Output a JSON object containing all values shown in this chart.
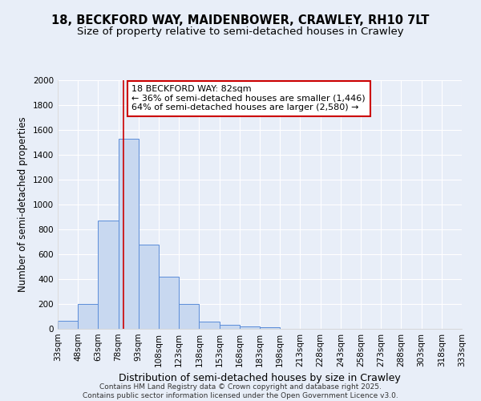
{
  "title": "18, BECKFORD WAY, MAIDENBOWER, CRAWLEY, RH10 7LT",
  "subtitle": "Size of property relative to semi-detached houses in Crawley",
  "xlabel": "Distribution of semi-detached houses by size in Crawley",
  "ylabel": "Number of semi-detached properties",
  "bar_color": "#c8d8f0",
  "bar_edge_color": "#5b8dd9",
  "background_color": "#e8eef8",
  "grid_color": "#ffffff",
  "property_size": 82,
  "property_line_color": "#cc0000",
  "annotation_text": "18 BECKFORD WAY: 82sqm\n← 36% of semi-detached houses are smaller (1,446)\n64% of semi-detached houses are larger (2,580) →",
  "annotation_box_color": "#ffffff",
  "annotation_border_color": "#cc0000",
  "categories": [
    "33sqm",
    "48sqm",
    "63sqm",
    "78sqm",
    "93sqm",
    "108sqm",
    "123sqm",
    "138sqm",
    "153sqm",
    "168sqm",
    "183sqm",
    "198sqm",
    "213sqm",
    "228sqm",
    "243sqm",
    "258sqm",
    "273sqm",
    "288sqm",
    "303sqm",
    "318sqm",
    "333sqm"
  ],
  "bin_edges": [
    33,
    48,
    63,
    78,
    93,
    108,
    123,
    138,
    153,
    168,
    183,
    198,
    213,
    228,
    243,
    258,
    273,
    288,
    303,
    318,
    333
  ],
  "values": [
    65,
    200,
    870,
    1530,
    680,
    420,
    200,
    60,
    30,
    20,
    10,
    0,
    0,
    0,
    0,
    0,
    0,
    0,
    0,
    0
  ],
  "ylim": [
    0,
    2000
  ],
  "yticks": [
    0,
    200,
    400,
    600,
    800,
    1000,
    1200,
    1400,
    1600,
    1800,
    2000
  ],
  "footer_text": "Contains HM Land Registry data © Crown copyright and database right 2025.\nContains public sector information licensed under the Open Government Licence v3.0.",
  "title_fontsize": 10.5,
  "subtitle_fontsize": 9.5,
  "tick_fontsize": 7.5,
  "ylabel_fontsize": 8.5,
  "xlabel_fontsize": 9,
  "annotation_fontsize": 8,
  "footer_fontsize": 6.5
}
